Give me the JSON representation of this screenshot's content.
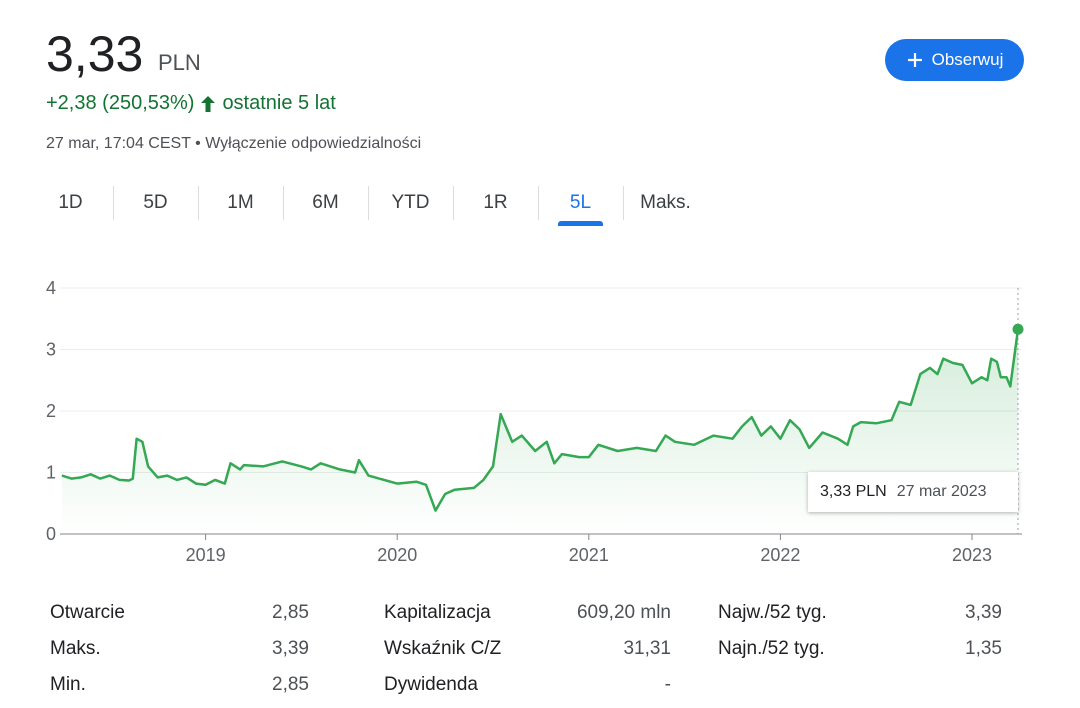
{
  "header": {
    "price": "3,33",
    "currency": "PLN",
    "change": "+2,38 (250,53%)",
    "period": "ostatnie 5 lat",
    "timestamp": "27 mar, 17:04 CEST",
    "separator": "•",
    "disclaimer": "Wyłączenie odpowiedzialności",
    "follow_button": "Obserwuj"
  },
  "tabs": {
    "items": [
      "1D",
      "5D",
      "1M",
      "6M",
      "YTD",
      "1R",
      "5L",
      "Maks."
    ],
    "active": 6
  },
  "chart": {
    "type": "line",
    "color": "#34a853",
    "grid": true,
    "x": [
      2018.25,
      2018.3,
      2018.35,
      2018.4,
      2018.45,
      2018.5,
      2018.55,
      2018.6,
      2018.62,
      2018.64,
      2018.67,
      2018.7,
      2018.75,
      2018.8,
      2018.85,
      2018.9,
      2018.95,
      2019.0,
      2019.05,
      2019.1,
      2019.13,
      2019.18,
      2019.2,
      2019.3,
      2019.4,
      2019.5,
      2019.55,
      2019.6,
      2019.7,
      2019.78,
      2019.8,
      2019.85,
      2020.0,
      2020.1,
      2020.15,
      2020.18,
      2020.2,
      2020.25,
      2020.3,
      2020.4,
      2020.45,
      2020.5,
      2020.54,
      2020.6,
      2020.65,
      2020.72,
      2020.78,
      2020.82,
      2020.86,
      2020.95,
      2021.0,
      2021.05,
      2021.15,
      2021.25,
      2021.35,
      2021.4,
      2021.45,
      2021.55,
      2021.65,
      2021.75,
      2021.8,
      2021.85,
      2021.9,
      2021.95,
      2022.0,
      2022.05,
      2022.1,
      2022.15,
      2022.22,
      2022.3,
      2022.35,
      2022.38,
      2022.42,
      2022.5,
      2022.58,
      2022.62,
      2022.68,
      2022.73,
      2022.78,
      2022.82,
      2022.85,
      2022.9,
      2022.95,
      2023.0,
      2023.05,
      2023.08,
      2023.1,
      2023.13,
      2023.15,
      2023.18,
      2023.2,
      2023.24
    ],
    "values": [
      0.95,
      0.9,
      0.92,
      0.97,
      0.9,
      0.95,
      0.88,
      0.87,
      0.9,
      1.55,
      1.5,
      1.1,
      0.92,
      0.95,
      0.88,
      0.92,
      0.82,
      0.8,
      0.88,
      0.82,
      1.15,
      1.05,
      1.12,
      1.1,
      1.18,
      1.1,
      1.05,
      1.15,
      1.05,
      1.0,
      1.2,
      0.95,
      0.82,
      0.85,
      0.8,
      0.55,
      0.38,
      0.65,
      0.72,
      0.75,
      0.88,
      1.1,
      1.95,
      1.5,
      1.6,
      1.35,
      1.5,
      1.15,
      1.3,
      1.25,
      1.25,
      1.45,
      1.35,
      1.4,
      1.35,
      1.6,
      1.5,
      1.45,
      1.6,
      1.55,
      1.75,
      1.9,
      1.6,
      1.75,
      1.55,
      1.85,
      1.7,
      1.4,
      1.65,
      1.55,
      1.45,
      1.75,
      1.82,
      1.8,
      1.85,
      2.15,
      2.1,
      2.6,
      2.7,
      2.6,
      2.85,
      2.78,
      2.75,
      2.45,
      2.55,
      2.5,
      2.85,
      2.8,
      2.55,
      2.55,
      2.4,
      3.33
    ],
    "xlim": [
      2018.24,
      2023.24
    ],
    "ylim": [
      0,
      4
    ],
    "xticks": [
      2019,
      2020,
      2021,
      2022,
      2023
    ],
    "yticks": [
      0,
      1,
      2,
      3,
      4
    ]
  },
  "tooltip": {
    "value": "3,33 PLN",
    "date": "27 mar 2023"
  },
  "stats": {
    "rows": [
      [
        "Otwarcie",
        "2,85",
        "Kapitalizacja",
        "609,20 mln",
        "Najw./52 tyg.",
        "3,39"
      ],
      [
        "Maks.",
        "3,39",
        "Wskaźnik C/Z",
        "31,31",
        "Najn./52 tyg.",
        "1,35"
      ],
      [
        "Min.",
        "2,85",
        "Dywidenda",
        "-"
      ]
    ]
  }
}
